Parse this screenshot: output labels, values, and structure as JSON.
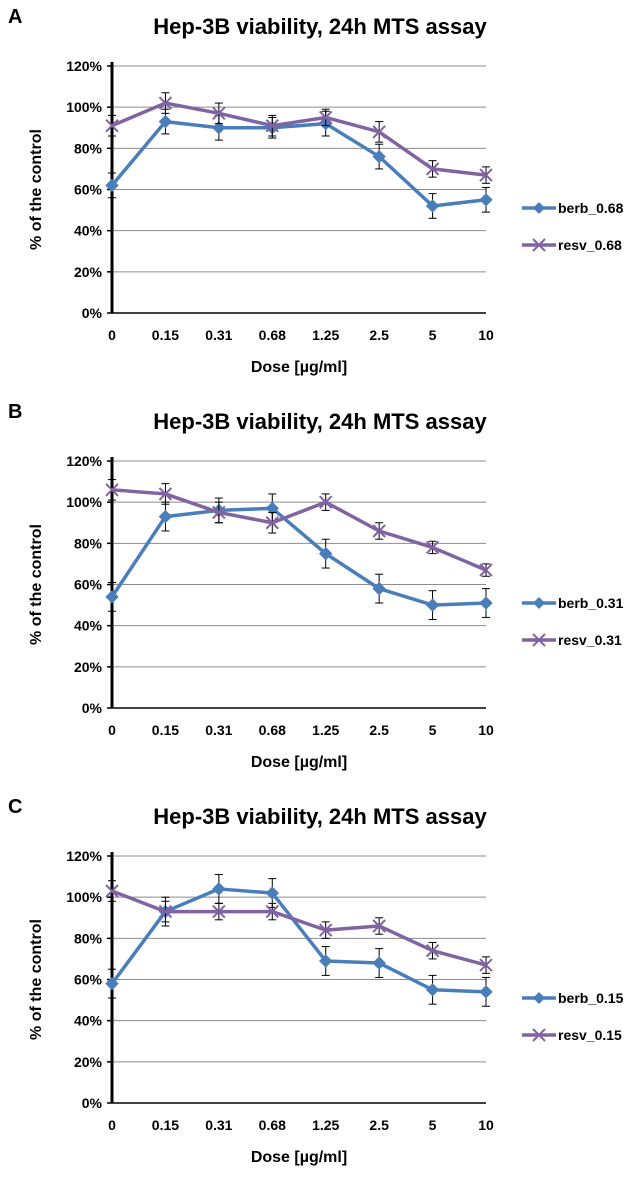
{
  "chart_data": [
    {
      "panel": "A",
      "type": "line",
      "title": "Hep-3B viability, 24h MTS assay",
      "xlabel": "Dose [µg/ml]",
      "ylabel": "% of the control",
      "categories": [
        "0",
        "0.15",
        "0.31",
        "0.68",
        "1.25",
        "2.5",
        "5",
        "10"
      ],
      "ylim": [
        0,
        120
      ],
      "yticks": [
        "0%",
        "20%",
        "40%",
        "60%",
        "80%",
        "100%",
        "120%"
      ],
      "grid": true,
      "legend": "right",
      "series": [
        {
          "name": "berb_0.68",
          "color": "#4a7ebb",
          "marker": "diamond",
          "values": [
            62,
            93,
            90,
            90,
            92,
            76,
            52,
            55
          ],
          "errors": [
            6,
            6,
            6,
            5,
            6,
            6,
            6,
            6
          ]
        },
        {
          "name": "resv_0.68",
          "color": "#8064a2",
          "marker": "x",
          "values": [
            91,
            102,
            97,
            91,
            95,
            88,
            70,
            67
          ],
          "errors": [
            5,
            5,
            5,
            5,
            4,
            5,
            4,
            4
          ]
        }
      ]
    },
    {
      "panel": "B",
      "type": "line",
      "title": "Hep-3B viability, 24h MTS assay",
      "xlabel": "Dose [µg/ml]",
      "ylabel": "% of the control",
      "categories": [
        "0",
        "0.15",
        "0.31",
        "0.68",
        "1.25",
        "2.5",
        "5",
        "10"
      ],
      "ylim": [
        0,
        120
      ],
      "yticks": [
        "0%",
        "20%",
        "40%",
        "60%",
        "80%",
        "100%",
        "120%"
      ],
      "grid": true,
      "legend": "right",
      "series": [
        {
          "name": "berb_0.31",
          "color": "#4a7ebb",
          "marker": "diamond",
          "values": [
            54,
            93,
            96,
            97,
            75,
            58,
            50,
            51
          ],
          "errors": [
            7,
            7,
            6,
            7,
            7,
            7,
            7,
            7
          ]
        },
        {
          "name": "resv_0.31",
          "color": "#8064a2",
          "marker": "x",
          "values": [
            106,
            104,
            95,
            90,
            100,
            86,
            78,
            67
          ],
          "errors": [
            5,
            5,
            5,
            5,
            4,
            4,
            3,
            3
          ]
        }
      ]
    },
    {
      "panel": "C",
      "type": "line",
      "title": "Hep-3B viability, 24h MTS assay",
      "xlabel": "Dose [µg/ml]",
      "ylabel": "% of the control",
      "categories": [
        "0",
        "0.15",
        "0.31",
        "0.68",
        "1.25",
        "2.5",
        "5",
        "10"
      ],
      "ylim": [
        0,
        120
      ],
      "yticks": [
        "0%",
        "20%",
        "40%",
        "60%",
        "80%",
        "100%",
        "120%"
      ],
      "grid": true,
      "legend": "right",
      "series": [
        {
          "name": "berb_0.15",
          "color": "#4a7ebb",
          "marker": "diamond",
          "values": [
            58,
            93,
            104,
            102,
            69,
            68,
            55,
            54
          ],
          "errors": [
            7,
            7,
            7,
            7,
            7,
            7,
            7,
            7
          ]
        },
        {
          "name": "resv_0.15",
          "color": "#8064a2",
          "marker": "x",
          "values": [
            103,
            93,
            93,
            93,
            84,
            86,
            74,
            67
          ],
          "errors": [
            5,
            5,
            4,
            4,
            4,
            4,
            4,
            4
          ]
        }
      ]
    }
  ]
}
